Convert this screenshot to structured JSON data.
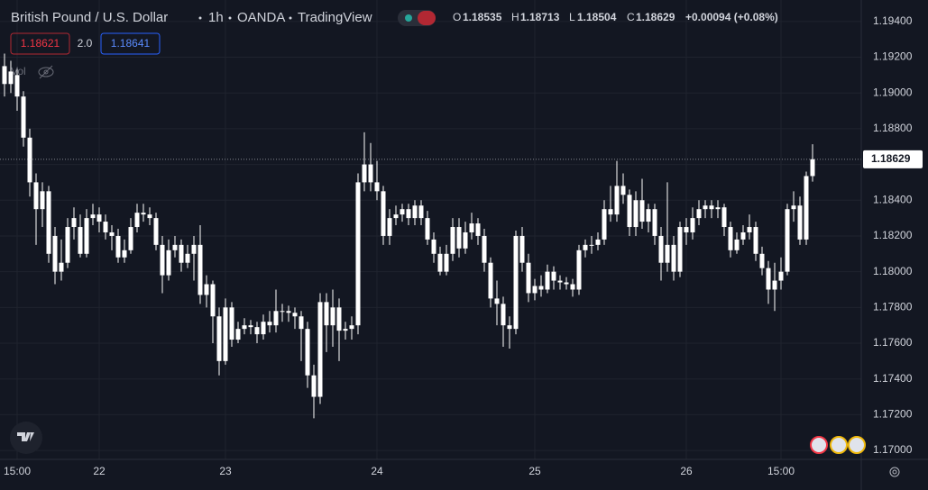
{
  "chart_data": {
    "type": "candlestick",
    "title": "British Pound / U.S. Dollar",
    "interval": "1h",
    "exchange": "OANDA",
    "platform": "TradingView",
    "ohlc_labels": [
      "O",
      "H",
      "L",
      "C"
    ],
    "change": "+0.00094 (+0.08%)",
    "sell_price": 1.18621,
    "spread": "2.0",
    "buy_price": 1.18641,
    "volume_label": "Vol",
    "up_color": "#ffffff",
    "down_color": "#ffffff",
    "background": "#131722",
    "grid": true,
    "ylim": [
      1.1695,
      1.1952
    ],
    "yticks": [
      {
        "value": 1.17,
        "label": "1.17000"
      },
      {
        "value": 1.172,
        "label": "1.17200"
      },
      {
        "value": 1.174,
        "label": "1.17400"
      },
      {
        "value": 1.176,
        "label": "1.17600"
      },
      {
        "value": 1.178,
        "label": "1.17800"
      },
      {
        "value": 1.18,
        "label": "1.18000"
      },
      {
        "value": 1.182,
        "label": "1.18200"
      },
      {
        "value": 1.184,
        "label": "1.18400"
      },
      {
        "value": 1.186,
        "label": "1.18600"
      },
      {
        "value": 1.188,
        "label": "1.18800"
      },
      {
        "value": 1.19,
        "label": "1.19000"
      },
      {
        "value": 1.192,
        "label": "1.19200"
      },
      {
        "value": 1.194,
        "label": "1.19400"
      }
    ],
    "categories": [
      null,
      null,
      "15:00",
      null,
      null,
      null,
      null,
      null,
      null,
      null,
      null,
      null,
      null,
      null,
      null,
      "22",
      null,
      null,
      null,
      null,
      null,
      null,
      null,
      null,
      null,
      null,
      null,
      null,
      null,
      null,
      null,
      null,
      null,
      null,
      null,
      "23",
      null,
      null,
      null,
      null,
      null,
      null,
      null,
      null,
      null,
      null,
      null,
      null,
      null,
      null,
      null,
      null,
      null,
      null,
      null,
      null,
      null,
      null,
      null,
      "24",
      null,
      null,
      null,
      null,
      null,
      null,
      null,
      null,
      null,
      null,
      null,
      null,
      null,
      null,
      null,
      null,
      null,
      null,
      null,
      null,
      null,
      null,
      null,
      null,
      "25",
      null,
      null,
      null,
      null,
      null,
      null,
      null,
      null,
      null,
      null,
      null,
      null,
      null,
      null,
      null,
      null,
      null,
      null,
      null,
      null,
      null,
      null,
      null,
      "26",
      null,
      null,
      null,
      null,
      null,
      null,
      null,
      null,
      null,
      null,
      null,
      null,
      null,
      null,
      "15:00",
      null,
      null,
      null,
      null,
      null
    ],
    "open": [
      1.1905,
      1.1912,
      1.191,
      1.1898,
      1.1875,
      1.185,
      1.1835,
      1.1845,
      1.182,
      1.18,
      1.1805,
      1.1825,
      1.1825,
      1.181,
      1.183,
      1.1832,
      1.1828,
      1.1822,
      1.182,
      1.1808,
      1.1812,
      1.1825,
      1.1833,
      1.1832,
      1.183,
      1.1815,
      1.1798,
      1.1812,
      1.1815,
      1.1805,
      1.181,
      1.1815,
      1.1787,
      1.1793,
      1.1775,
      1.175,
      1.178,
      1.1762,
      1.1768,
      1.177,
      1.1769,
      1.1765,
      1.1772,
      1.177,
      1.1778,
      1.1778,
      1.1777,
      1.1775,
      1.1768,
      1.1742,
      1.173,
      1.1783,
      1.177,
      1.178,
      1.1767,
      1.1768,
      1.177,
      1.185,
      1.186,
      1.185,
      1.1845,
      1.182,
      1.183,
      1.1832,
      1.1835,
      1.183,
      1.1837,
      1.183,
      1.1818,
      1.181,
      1.18,
      1.181,
      1.1825,
      1.1813,
      1.1822,
      1.1827,
      1.182,
      1.1805,
      1.1785,
      1.1782,
      1.177,
      1.1768,
      1.182,
      1.1805,
      1.1788,
      1.1792,
      1.179,
      1.18,
      1.1795,
      1.1794,
      1.1793,
      1.179,
      1.1812,
      1.1815,
      1.1815,
      1.1818,
      1.1835,
      1.1832,
      1.1848,
      1.1843,
      1.1825,
      1.184,
      1.1828,
      1.1835,
      1.182,
      1.1805,
      1.1815,
      1.18,
      1.1825,
      1.1822,
      1.183,
      1.1835,
      1.1837,
      1.1835,
      1.1836,
      1.1825,
      1.1812,
      1.1818,
      1.1822,
      1.1825,
      1.181,
      1.1802,
      1.179,
      1.1795,
      1.18,
      1.1835,
      1.1837,
      1.1818,
      1.18535
    ],
    "high": [
      1.1922,
      1.1918,
      1.1914,
      1.1901,
      1.188,
      1.1855,
      1.185,
      1.1848,
      1.1825,
      1.1818,
      1.183,
      1.1836,
      1.1832,
      1.1835,
      1.1838,
      1.1836,
      1.1832,
      1.1826,
      1.1824,
      1.1818,
      1.183,
      1.1838,
      1.1838,
      1.1836,
      1.1833,
      1.182,
      1.1818,
      1.182,
      1.1818,
      1.1815,
      1.182,
      1.1826,
      1.1798,
      1.1795,
      1.178,
      1.1785,
      1.1783,
      1.1772,
      1.1774,
      1.1773,
      1.1772,
      1.1776,
      1.1778,
      1.179,
      1.1782,
      1.1781,
      1.178,
      1.1778,
      1.1772,
      1.1748,
      1.1788,
      1.1788,
      1.179,
      1.1785,
      1.1772,
      1.1775,
      1.1855,
      1.1878,
      1.1872,
      1.1862,
      1.1848,
      1.1835,
      1.1837,
      1.1838,
      1.1838,
      1.184,
      1.184,
      1.1834,
      1.1822,
      1.1814,
      1.1815,
      1.183,
      1.183,
      1.1828,
      1.1833,
      1.183,
      1.1824,
      1.1808,
      1.1795,
      1.1786,
      1.1775,
      1.1823,
      1.1825,
      1.181,
      1.1796,
      1.1798,
      1.1804,
      1.1803,
      1.1798,
      1.1797,
      1.1796,
      1.1815,
      1.1818,
      1.182,
      1.1822,
      1.184,
      1.1848,
      1.1862,
      1.1855,
      1.1846,
      1.1845,
      1.1852,
      1.1838,
      1.1838,
      1.1825,
      1.185,
      1.182,
      1.1828,
      1.183,
      1.1836,
      1.184,
      1.184,
      1.184,
      1.184,
      1.1838,
      1.1828,
      1.1822,
      1.1826,
      1.1832,
      1.1828,
      1.1814,
      1.1806,
      1.1805,
      1.1808,
      1.1838,
      1.1845,
      1.1842,
      1.1856,
      1.18713
    ],
    "low": [
      1.1898,
      1.19,
      1.189,
      1.187,
      1.1842,
      1.1815,
      1.1825,
      1.1805,
      1.1793,
      1.1795,
      1.1802,
      1.1818,
      1.1808,
      1.1808,
      1.1826,
      1.1822,
      1.1818,
      1.1812,
      1.1805,
      1.1805,
      1.181,
      1.1822,
      1.1828,
      1.1826,
      1.1812,
      1.1788,
      1.1795,
      1.1808,
      1.18,
      1.1802,
      1.1795,
      1.1782,
      1.178,
      1.176,
      1.1742,
      1.1748,
      1.1758,
      1.176,
      1.1765,
      1.1765,
      1.176,
      1.1762,
      1.1766,
      1.1766,
      1.1772,
      1.1772,
      1.1768,
      1.175,
      1.1735,
      1.1718,
      1.1726,
      1.1755,
      1.1758,
      1.175,
      1.1762,
      1.1762,
      1.1765,
      1.1845,
      1.1845,
      1.184,
      1.1815,
      1.1815,
      1.1826,
      1.1828,
      1.1826,
      1.1826,
      1.1826,
      1.1815,
      1.1805,
      1.1798,
      1.1798,
      1.1806,
      1.1808,
      1.181,
      1.1818,
      1.1815,
      1.18,
      1.178,
      1.177,
      1.1758,
      1.1757,
      1.1765,
      1.18,
      1.1783,
      1.1784,
      1.1786,
      1.1788,
      1.179,
      1.179,
      1.179,
      1.1786,
      1.1787,
      1.1808,
      1.181,
      1.1812,
      1.1815,
      1.1828,
      1.1828,
      1.1838,
      1.182,
      1.182,
      1.1824,
      1.1822,
      1.1815,
      1.1795,
      1.18,
      1.1795,
      1.1797,
      1.1815,
      1.1818,
      1.1826,
      1.183,
      1.183,
      1.183,
      1.182,
      1.1808,
      1.181,
      1.1815,
      1.1818,
      1.1806,
      1.1798,
      1.1782,
      1.1778,
      1.179,
      1.1798,
      1.1828,
      1.1815,
      1.1815,
      1.18504
    ],
    "close": [
      1.1915,
      1.1905,
      1.1898,
      1.1875,
      1.185,
      1.1835,
      1.1845,
      1.181,
      1.18,
      1.1805,
      1.1825,
      1.183,
      1.181,
      1.183,
      1.1832,
      1.1828,
      1.1822,
      1.182,
      1.1808,
      1.1812,
      1.1825,
      1.1833,
      1.1832,
      1.183,
      1.1815,
      1.1798,
      1.1812,
      1.1815,
      1.1805,
      1.181,
      1.1815,
      1.1787,
      1.1793,
      1.1775,
      1.175,
      1.178,
      1.1762,
      1.1768,
      1.177,
      1.1769,
      1.1765,
      1.1772,
      1.177,
      1.1778,
      1.1778,
      1.1777,
      1.1775,
      1.1768,
      1.1742,
      1.173,
      1.1783,
      1.177,
      1.178,
      1.1767,
      1.1768,
      1.177,
      1.185,
      1.186,
      1.185,
      1.1845,
      1.182,
      1.183,
      1.1832,
      1.1835,
      1.183,
      1.1837,
      1.183,
      1.1818,
      1.181,
      1.18,
      1.181,
      1.1825,
      1.1813,
      1.1822,
      1.1827,
      1.182,
      1.1805,
      1.1785,
      1.1782,
      1.177,
      1.1768,
      1.182,
      1.1805,
      1.1788,
      1.1792,
      1.179,
      1.18,
      1.1795,
      1.1794,
      1.1793,
      1.179,
      1.1812,
      1.1815,
      1.1815,
      1.1818,
      1.1835,
      1.1832,
      1.1848,
      1.1843,
      1.1825,
      1.184,
      1.1828,
      1.1835,
      1.182,
      1.1805,
      1.1815,
      1.18,
      1.1825,
      1.1822,
      1.183,
      1.1835,
      1.1837,
      1.1835,
      1.1836,
      1.1825,
      1.1812,
      1.1818,
      1.1822,
      1.1825,
      1.181,
      1.1802,
      1.179,
      1.1795,
      1.18,
      1.1835,
      1.1837,
      1.1818,
      1.18535,
      1.18629
    ]
  }
}
